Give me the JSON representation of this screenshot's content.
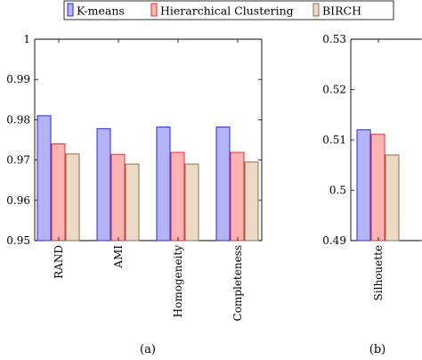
{
  "legend": [
    {
      "name": "K-means",
      "fill": "#b3b3f5",
      "stroke": "#2a2ae0"
    },
    {
      "name": "Hierarchical Clustering",
      "fill": "#ffb3b3",
      "stroke": "#e03030"
    },
    {
      "name": "BIRCH",
      "fill": "#ecd9c6",
      "stroke": "#8c6d4f"
    }
  ],
  "chart_data": [
    {
      "type": "bar",
      "caption": "(a)",
      "categories": [
        "RAND",
        "AMI",
        "Homogeneity",
        "Completeness"
      ],
      "series": [
        {
          "name": "K-means",
          "values": [
            0.981,
            0.9778,
            0.9782,
            0.9782
          ]
        },
        {
          "name": "Hierarchical Clustering",
          "values": [
            0.974,
            0.9714,
            0.9719,
            0.9719
          ]
        },
        {
          "name": "BIRCH",
          "values": [
            0.9715,
            0.969,
            0.969,
            0.9695
          ]
        }
      ],
      "ylim": [
        0.95,
        1.0
      ],
      "yticks": [
        "0.95",
        "0.96",
        "0.97",
        "0.98",
        "0.99",
        "1"
      ],
      "ytick_values": [
        0.95,
        0.96,
        0.97,
        0.98,
        0.99,
        1.0
      ]
    },
    {
      "type": "bar",
      "caption": "(b)",
      "categories": [
        "Silhouette"
      ],
      "series": [
        {
          "name": "K-means",
          "values": [
            0.512
          ]
        },
        {
          "name": "Hierarchical Clustering",
          "values": [
            0.5111
          ]
        },
        {
          "name": "BIRCH",
          "values": [
            0.507
          ]
        }
      ],
      "ylim": [
        0.49,
        0.53
      ],
      "yticks": [
        "0.49",
        "0.5",
        "0.51",
        "0.52",
        "0.53"
      ],
      "ytick_values": [
        0.49,
        0.5,
        0.51,
        0.52,
        0.53
      ]
    }
  ]
}
